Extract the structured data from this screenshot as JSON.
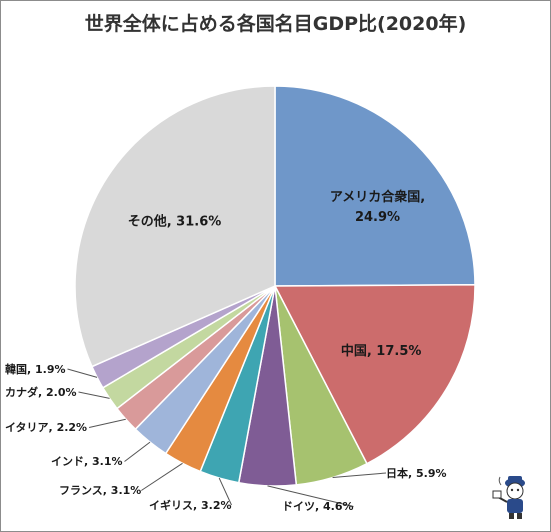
{
  "chart_data": {
    "type": "pie",
    "title": "世界全体に占める各国名目GDP比(2020年)",
    "slices": [
      {
        "label": "アメリカ合衆国",
        "value": 24.9,
        "value_label": "24.9%",
        "color": "#6f97c9"
      },
      {
        "label": "中国",
        "value": 17.5,
        "value_label": "17.5%",
        "color": "#cc6c6c"
      },
      {
        "label": "日本",
        "value": 5.9,
        "value_label": "5.9%",
        "color": "#a6c26f"
      },
      {
        "label": "ドイツ",
        "value": 4.6,
        "value_label": "4.6%",
        "color": "#7f5c95"
      },
      {
        "label": "イギリス",
        "value": 3.2,
        "value_label": "3.2%",
        "color": "#3ea5b2"
      },
      {
        "label": "フランス",
        "value": 3.1,
        "value_label": "3.1%",
        "color": "#e58a40"
      },
      {
        "label": "インド",
        "value": 3.1,
        "value_label": "3.1%",
        "color": "#9fb5da"
      },
      {
        "label": "イタリア",
        "value": 2.2,
        "value_label": "2.2%",
        "color": "#d99a9a"
      },
      {
        "label": "カナダ",
        "value": 2.0,
        "value_label": "2.0%",
        "color": "#c3d8a0"
      },
      {
        "label": "韓国",
        "value": 1.9,
        "value_label": "1.9%",
        "color": "#b4a3cc"
      },
      {
        "label": "その他",
        "value": 31.6,
        "value_label": "31.6%",
        "color": "#d9d9d9"
      }
    ],
    "start": "12 o'clock",
    "direction": "clockwise",
    "legend": "none",
    "data_labels": "category name and percent"
  }
}
